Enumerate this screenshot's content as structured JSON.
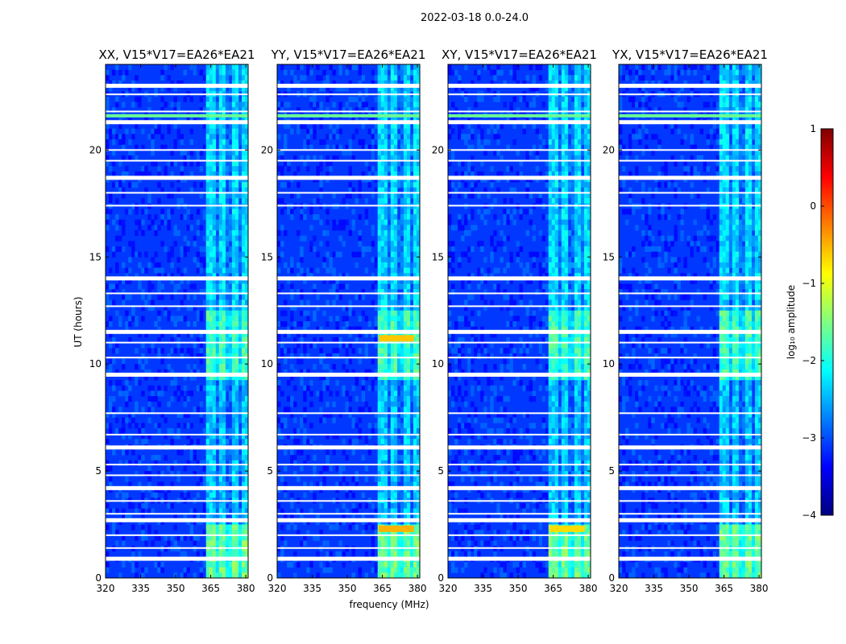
{
  "chart_data": {
    "type": "heatmap",
    "suptitle": "2022-03-18 0.0-24.0",
    "panels": [
      {
        "title": "XX, V15*V17=EA26*EA21"
      },
      {
        "title": "YY, V15*V17=EA26*EA21"
      },
      {
        "title": "XY, V15*V17=EA26*EA21"
      },
      {
        "title": "YX, V15*V17=EA26*EA21"
      }
    ],
    "xlabel": "frequency (MHz)",
    "ylabel": "UT (hours)",
    "xlim": [
      320,
      381
    ],
    "ylim": [
      0,
      24
    ],
    "xticks": [
      320,
      335,
      350,
      365,
      380
    ],
    "yticks": [
      0,
      5,
      10,
      15,
      20
    ],
    "colorbar": {
      "label": "log₁₀ amplitude",
      "ticks": [
        "1",
        "0",
        "−1",
        "−2",
        "−3",
        "−4"
      ],
      "range": [
        -4,
        1
      ],
      "colormap": [
        "#00007f",
        "#0000ff",
        "#007fff",
        "#00ffff",
        "#7fff7f",
        "#ffff00",
        "#ff7f00",
        "#ff0000",
        "#7f0000"
      ]
    },
    "background_level": -3.1,
    "band_levels": [
      {
        "t0": 0.0,
        "t1": 2.6,
        "level": -1.6
      },
      {
        "t0": 2.6,
        "t1": 9.3,
        "level": -2.4
      },
      {
        "t0": 9.3,
        "t1": 12.5,
        "level": -1.8
      },
      {
        "t0": 12.5,
        "t1": 24.0,
        "level": -2.3
      }
    ],
    "rfi_channels_mhz": [
      363.5,
      366.5,
      368.5,
      371.5,
      373.5,
      376.5,
      378.5,
      381.0
    ],
    "flagged_hours": [
      23.0,
      22.6,
      21.8,
      21.3,
      20.0,
      19.5,
      18.7,
      18.0,
      17.4,
      14.0,
      13.3,
      12.7,
      11.5,
      11.0,
      10.3,
      9.5,
      7.7,
      6.7,
      6.1,
      5.3,
      4.8,
      4.2,
      3.6,
      3.0,
      2.7,
      2.0,
      1.4,
      0.9
    ],
    "hot_rows": [
      {
        "t": 21.6,
        "level": -1.6
      },
      {
        "t": 11.2,
        "level": -0.6,
        "panel": 1
      },
      {
        "t": 2.3,
        "level": -0.5,
        "panel": 1
      },
      {
        "t": 2.3,
        "level": -0.7,
        "panel": 2
      }
    ]
  }
}
